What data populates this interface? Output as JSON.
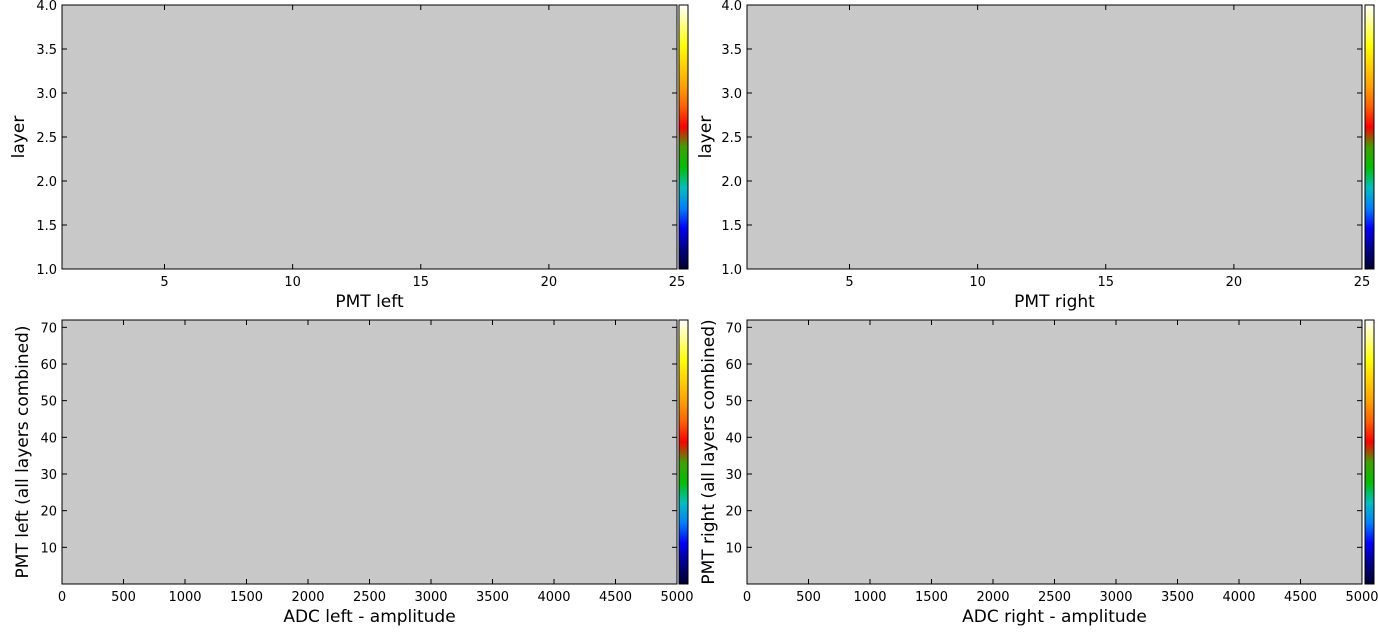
{
  "chart_data": [
    {
      "type": "heatmap",
      "xlabel": "PMT left",
      "ylabel": "layer",
      "xlim": [
        1,
        25
      ],
      "ylim": [
        1.0,
        4.0
      ],
      "xticks": [
        5,
        10,
        15,
        20,
        25
      ],
      "yticks": [
        1.0,
        1.5,
        2.0,
        2.5,
        3.0,
        3.5,
        4.0
      ],
      "ytick_labels": [
        "1.0",
        "1.5",
        "2.0",
        "2.5",
        "3.0",
        "3.5",
        "4.0"
      ],
      "values": [],
      "background": "#c8c8c8",
      "colorbar": true
    },
    {
      "type": "heatmap",
      "xlabel": "PMT right",
      "ylabel": "layer",
      "xlim": [
        1,
        25
      ],
      "ylim": [
        1.0,
        4.0
      ],
      "xticks": [
        5,
        10,
        15,
        20,
        25
      ],
      "yticks": [
        1.0,
        1.5,
        2.0,
        2.5,
        3.0,
        3.5,
        4.0
      ],
      "ytick_labels": [
        "1.0",
        "1.5",
        "2.0",
        "2.5",
        "3.0",
        "3.5",
        "4.0"
      ],
      "values": [],
      "background": "#c8c8c8",
      "colorbar": true
    },
    {
      "type": "heatmap",
      "xlabel": "ADC left - amplitude",
      "ylabel": "PMT left (all layers combined)",
      "xlim": [
        0,
        5000
      ],
      "ylim": [
        0,
        72
      ],
      "xticks": [
        0,
        500,
        1000,
        1500,
        2000,
        2500,
        3000,
        3500,
        4000,
        4500,
        5000
      ],
      "yticks": [
        10,
        20,
        30,
        40,
        50,
        60,
        70
      ],
      "ytick_labels": [
        "10",
        "20",
        "30",
        "40",
        "50",
        "60",
        "70"
      ],
      "values": [],
      "background": "#c8c8c8",
      "colorbar": true
    },
    {
      "type": "heatmap",
      "xlabel": "ADC right - amplitude",
      "ylabel": "PMT right (all layers combined)",
      "xlim": [
        0,
        5000
      ],
      "ylim": [
        0,
        72
      ],
      "xticks": [
        0,
        500,
        1000,
        1500,
        2000,
        2500,
        3000,
        3500,
        4000,
        4500,
        5000
      ],
      "yticks": [
        10,
        20,
        30,
        40,
        50,
        60,
        70
      ],
      "ytick_labels": [
        "10",
        "20",
        "30",
        "40",
        "50",
        "60",
        "70"
      ],
      "values": [],
      "background": "#c8c8c8",
      "colorbar": true
    }
  ],
  "colormap": [
    "#000033",
    "#000088",
    "#0000ff",
    "#0080ff",
    "#00c0c0",
    "#00c000",
    "#40a000",
    "#ff0000",
    "#ff6000",
    "#ffa000",
    "#ffd000",
    "#ffff00",
    "#ffff80",
    "#ffffff"
  ]
}
